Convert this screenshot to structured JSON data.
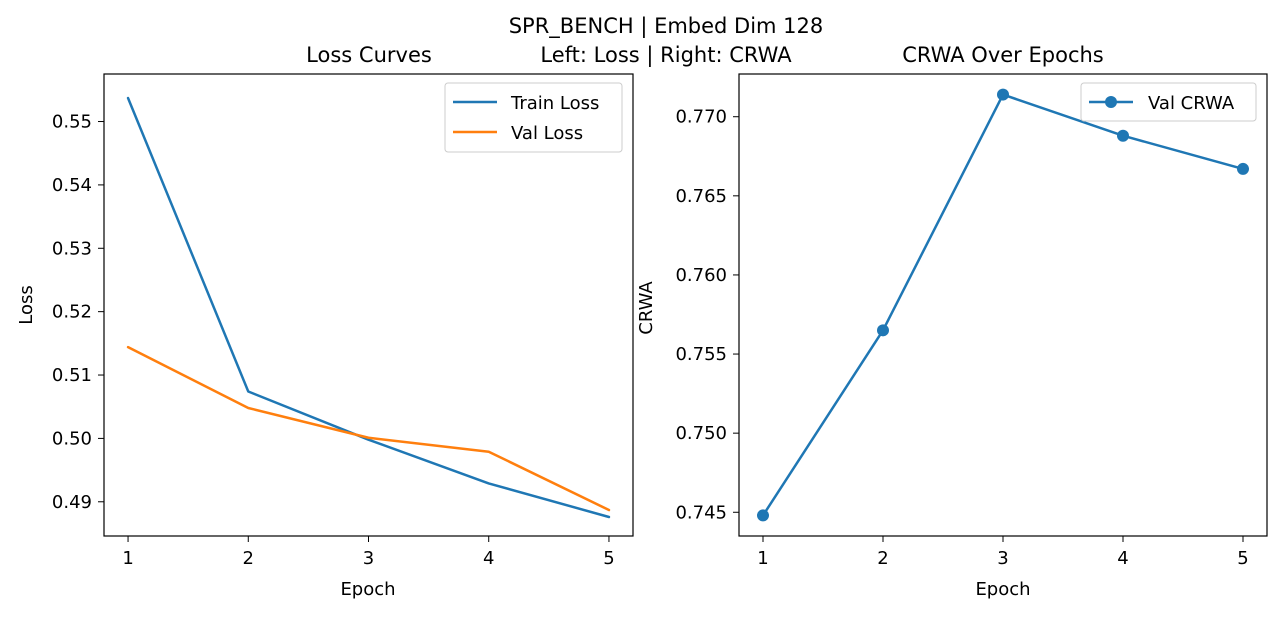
{
  "suptitle": {
    "line1": "SPR_BENCH | Embed Dim 128",
    "line2": "Left: Loss | Right: CRWA"
  },
  "colors": {
    "blue": "#1f77b4",
    "orange": "#ff7f0e"
  },
  "chart_data": [
    {
      "type": "line",
      "title": "Loss Curves",
      "xlabel": "Epoch",
      "ylabel": "Loss",
      "x": [
        1,
        2,
        3,
        4,
        5
      ],
      "xlim": [
        0.8,
        5.2
      ],
      "ylim": [
        0.4846,
        0.5575
      ],
      "xticks": [
        1,
        2,
        3,
        4,
        5
      ],
      "yticks": [
        0.49,
        0.5,
        0.51,
        0.52,
        0.53,
        0.54,
        0.55
      ],
      "ytick_labels": [
        "0.49",
        "0.50",
        "0.51",
        "0.52",
        "0.53",
        "0.54",
        "0.55"
      ],
      "legend_position": "upper right",
      "series": [
        {
          "name": "Train Loss",
          "color": "#1f77b4",
          "marker": false,
          "values": [
            0.5537,
            0.5074,
            0.4998,
            0.4929,
            0.4876
          ]
        },
        {
          "name": "Val Loss",
          "color": "#ff7f0e",
          "marker": false,
          "values": [
            0.5144,
            0.5048,
            0.5001,
            0.4979,
            0.4887
          ]
        }
      ]
    },
    {
      "type": "line",
      "title": "CRWA Over Epochs",
      "xlabel": "Epoch",
      "ylabel": "CRWA",
      "x": [
        1,
        2,
        3,
        4,
        5
      ],
      "xlim": [
        0.8,
        5.2
      ],
      "ylim": [
        0.7435,
        0.7727
      ],
      "xticks": [
        1,
        2,
        3,
        4,
        5
      ],
      "yticks": [
        0.745,
        0.75,
        0.755,
        0.76,
        0.765,
        0.77
      ],
      "ytick_labels": [
        "0.745",
        "0.750",
        "0.755",
        "0.760",
        "0.765",
        "0.770"
      ],
      "legend_position": "upper right",
      "series": [
        {
          "name": "Val CRWA",
          "color": "#1f77b4",
          "marker": true,
          "values": [
            0.7448,
            0.7565,
            0.7714,
            0.7688,
            0.7667
          ]
        }
      ]
    }
  ]
}
